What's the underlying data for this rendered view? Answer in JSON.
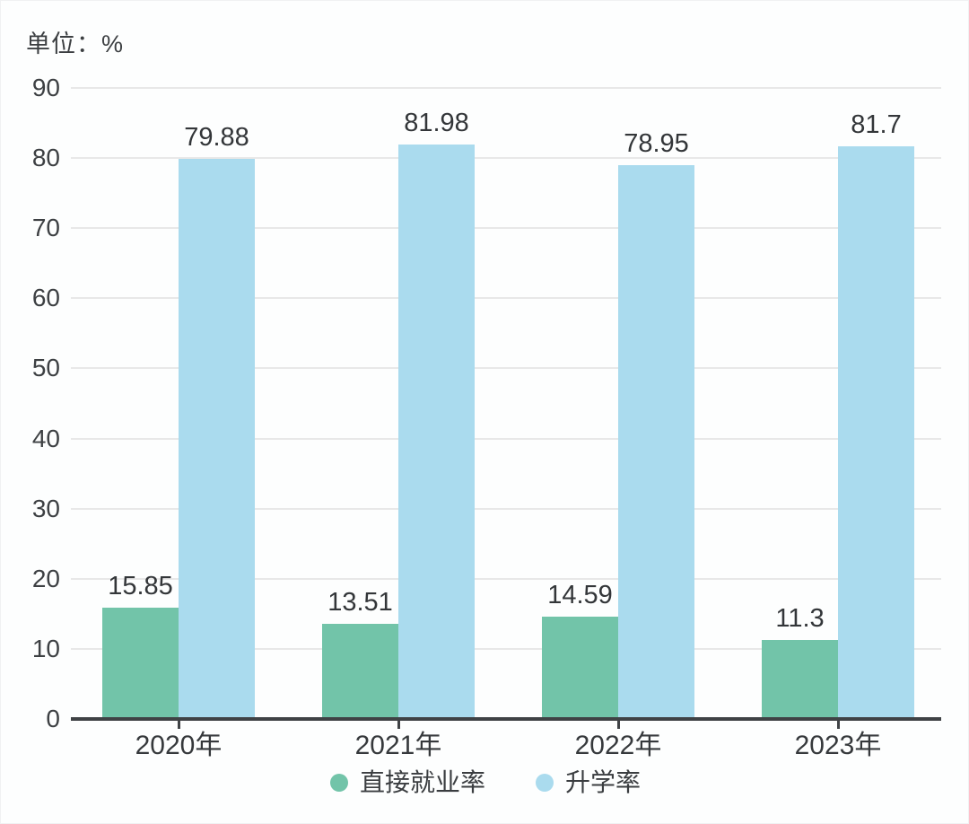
{
  "chart_data": {
    "type": "bar",
    "title": "",
    "unit_label": "单位：%",
    "xlabel": "",
    "ylabel": "",
    "categories": [
      "2020年",
      "2021年",
      "2022年",
      "2023年"
    ],
    "series": [
      {
        "name": "直接就业率",
        "color": "#72c4a9",
        "values": [
          15.85,
          13.51,
          14.59,
          11.3
        ]
      },
      {
        "name": "升学率",
        "color": "#aadbee",
        "values": [
          79.88,
          81.98,
          78.95,
          81.7
        ]
      }
    ],
    "ylim": [
      0,
      90
    ],
    "y_ticks": [
      0,
      10,
      20,
      30,
      40,
      50,
      60,
      70,
      80,
      90
    ],
    "grid": true,
    "legend_position": "bottom",
    "colors": {
      "grid_line": "#e8e8e8",
      "axis_line": "#3f4245",
      "label_text": "#333639"
    }
  }
}
